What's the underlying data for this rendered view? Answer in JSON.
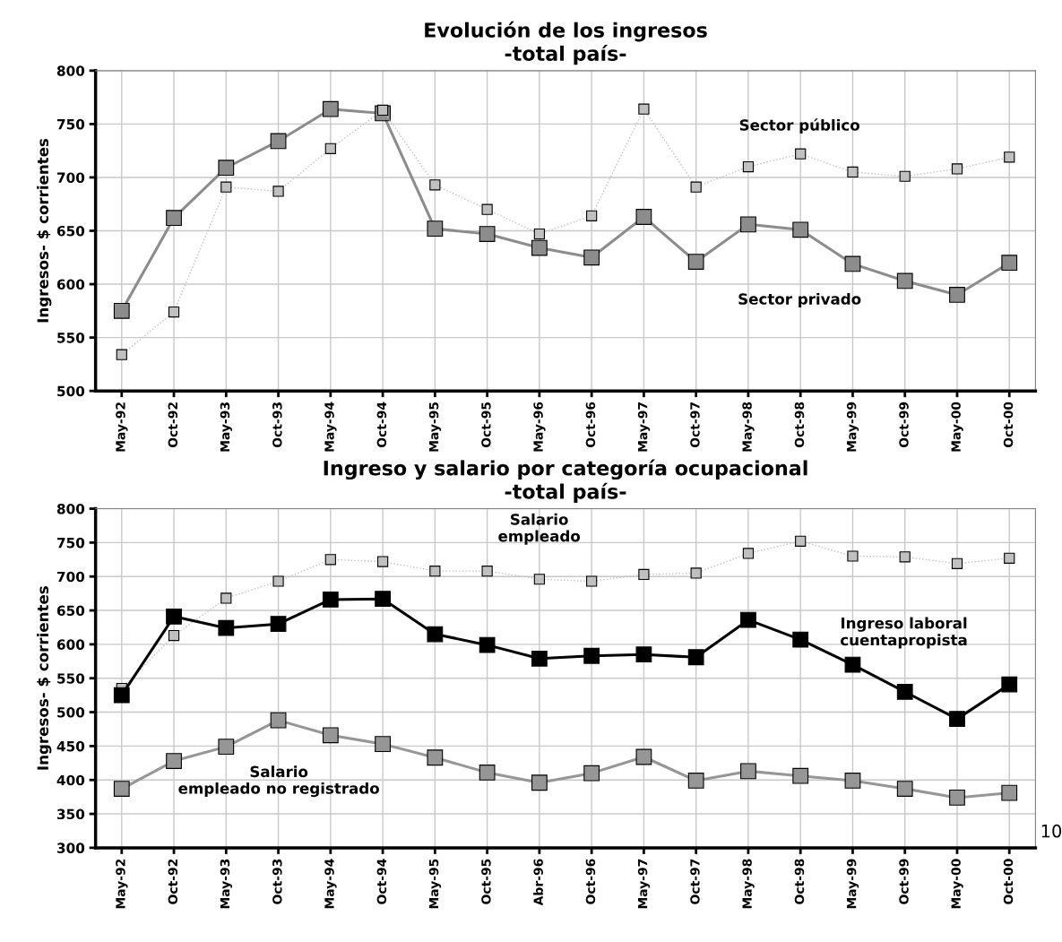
{
  "chart_data": [
    {
      "type": "line",
      "title": "Evolución de los ingresos\n-total país-",
      "ylabel": "Ingresos- $ corrientes",
      "categories": [
        "May-92",
        "Oct-92",
        "May-93",
        "Oct-93",
        "May-94",
        "Oct-94",
        "May-95",
        "Oct-95",
        "May-96",
        "Oct-96",
        "May-97",
        "Oct-97",
        "May-98",
        "Oct-98",
        "May-99",
        "Oct-99",
        "May-00",
        "Oct-00"
      ],
      "series": [
        {
          "color": "#8c8c8c",
          "line_style": "solid",
          "values": [
            575,
            662,
            709,
            734,
            764,
            760,
            652,
            647,
            634,
            625,
            663,
            621,
            656,
            651,
            619,
            603,
            590,
            620
          ]
        },
        {
          "color": "#c0c0c0",
          "line_style": "dotted",
          "values": [
            534,
            574,
            691,
            687,
            727,
            763,
            693,
            670,
            647,
            664,
            764,
            691,
            710,
            722,
            705,
            701,
            708,
            719
          ]
        }
      ],
      "ylim": [
        500,
        800
      ],
      "yticks": [
        500,
        550,
        600,
        650,
        700,
        750,
        800
      ],
      "grid": true,
      "legend": false,
      "marker": "square",
      "annotations": [
        "Sector público",
        "Sector privado"
      ]
    },
    {
      "type": "line",
      "title": "Ingreso y salario por categoría ocupacional\n-total país-",
      "ylabel": "Ingresos- $ corrientes",
      "categories": [
        "May-92",
        "Oct-92",
        "May-93",
        "Oct-93",
        "May-94",
        "Oct-94",
        "May-95",
        "Oct-95",
        "Abr-96",
        "Oct-96",
        "May-97",
        "Oct-97",
        "May-98",
        "Oct-98",
        "May-99",
        "Oct-99",
        "May-00",
        "Oct-00"
      ],
      "series": [
        {
          "color": "#c0c0c0",
          "line_style": "dotted",
          "values": [
            535,
            613,
            668,
            693,
            725,
            722,
            708,
            708,
            696,
            693,
            703,
            705,
            734,
            752,
            730,
            729,
            719,
            727
          ]
        },
        {
          "color": "#000000",
          "line_style": "solid",
          "values": [
            525,
            641,
            624,
            630,
            666,
            667,
            615,
            599,
            579,
            583,
            585,
            581,
            636,
            607,
            570,
            530,
            490,
            541
          ]
        },
        {
          "color": "#969696",
          "line_style": "solid",
          "values": [
            387,
            428,
            449,
            488,
            466,
            453,
            433,
            411,
            396,
            410,
            434,
            399,
            413,
            406,
            399,
            387,
            374,
            381
          ]
        }
      ],
      "ylim": [
        300,
        800
      ],
      "yticks": [
        300,
        350,
        400,
        450,
        500,
        550,
        600,
        650,
        700,
        750,
        800
      ],
      "grid": true,
      "legend": false,
      "marker": "square",
      "annotations": [
        "Salario\nempleado",
        "Ingreso laboral\ncuentapropista",
        "Salario\nempleado no registrado",
        "10"
      ]
    }
  ]
}
